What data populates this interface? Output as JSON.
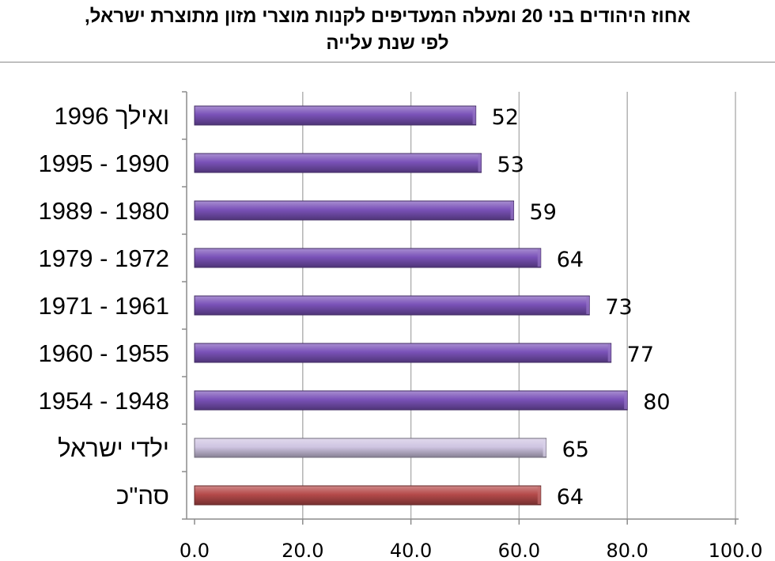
{
  "chart_data": {
    "type": "bar",
    "orientation": "horizontal",
    "title_lines": [
      "אחוז היהודים בני 20 ומעלה המעדיפים לקנות מוצרי מזון מתוצרת ישראל,",
      "לפי שנת עלייה"
    ],
    "categories": [
      "1996 ואילך",
      "1995 - 1990",
      "1989 - 1980",
      "1979 - 1972",
      "1971 - 1961",
      "1960 - 1955",
      "1954 - 1948",
      "ילדי ישראל",
      "סה\"כ"
    ],
    "values": [
      52,
      53,
      59,
      64,
      73,
      77,
      80,
      65,
      64
    ],
    "data_labels": [
      "52",
      "53",
      "59",
      "64",
      "73",
      "77",
      "80",
      "65",
      "64"
    ],
    "bar_colors": [
      "#7a52b8",
      "#7a52b8",
      "#7a52b8",
      "#7a52b8",
      "#7a52b8",
      "#7a52b8",
      "#7a52b8",
      "#cfc5e2",
      "#b54a4a"
    ],
    "xlim": [
      0,
      100
    ],
    "x_ticks": [
      "0.0",
      "20.0",
      "40.0",
      "60.0",
      "80.0",
      "100.0"
    ],
    "grid": "vertical",
    "legend": "none",
    "xlabel": "",
    "ylabel": ""
  }
}
